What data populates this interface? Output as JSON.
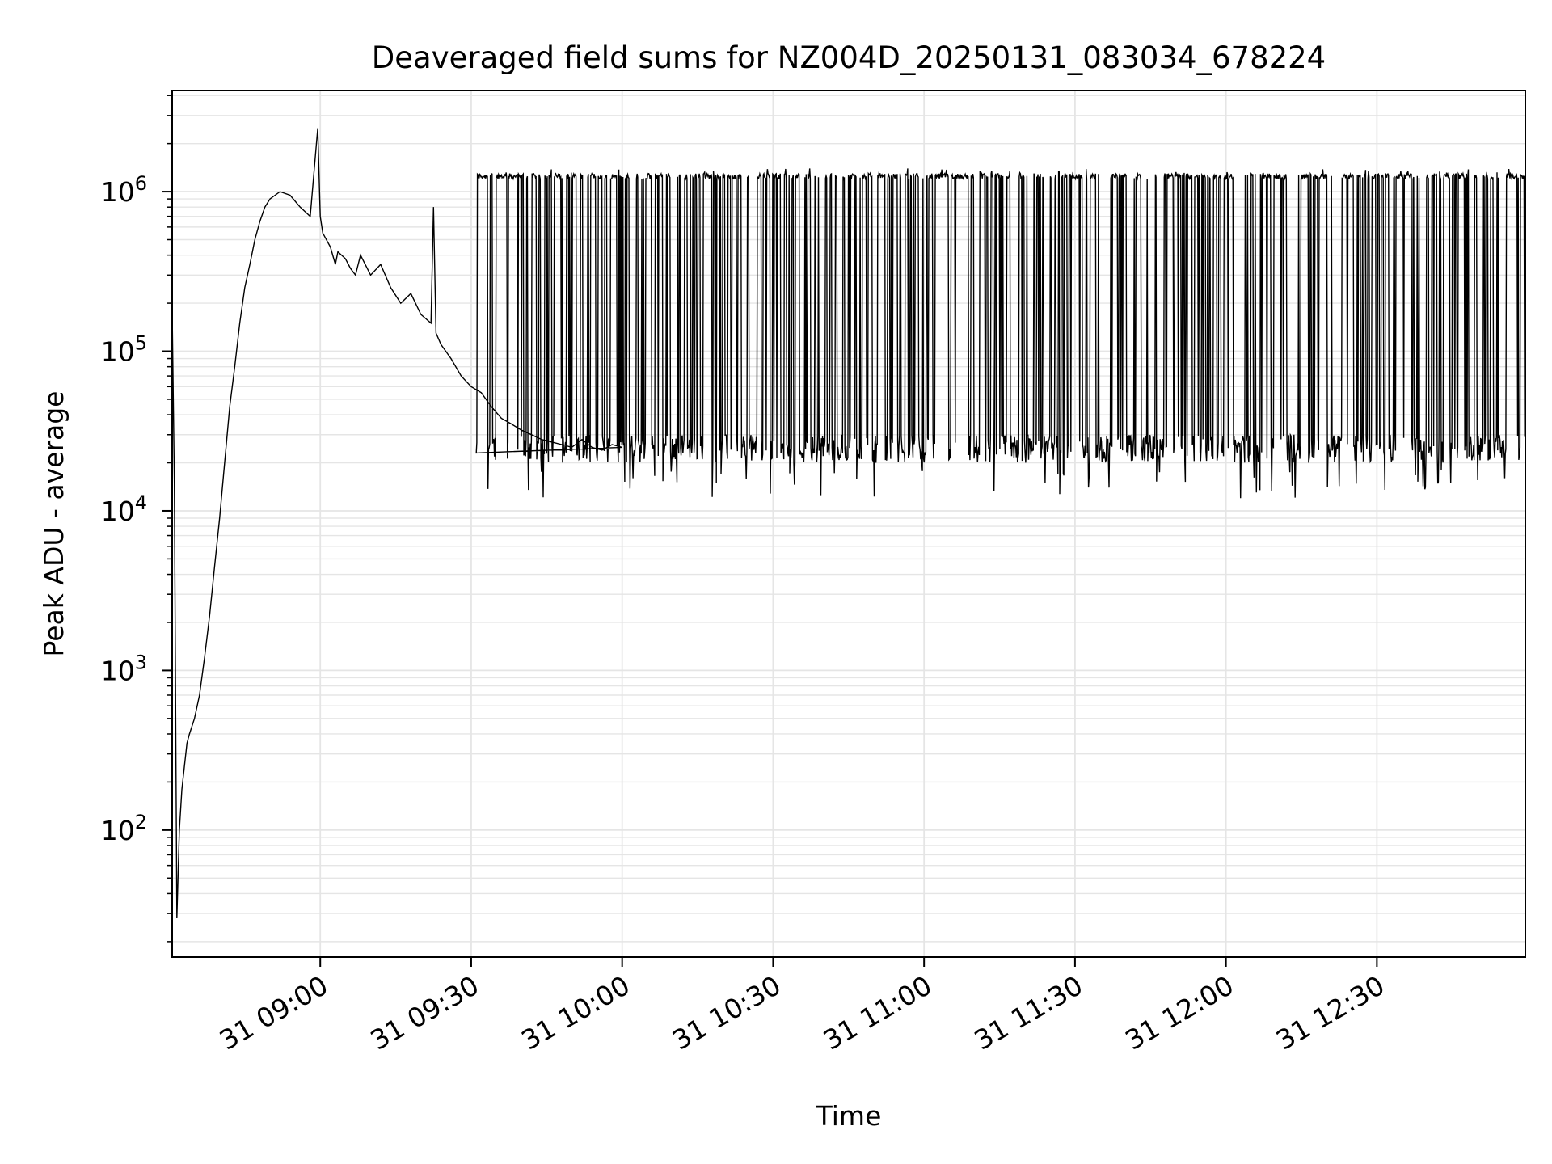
{
  "chart_data": {
    "type": "line",
    "title": "Deaveraged field sums for NZ004D_20250131_083034_678224",
    "xlabel": "Time",
    "ylabel": "Peak ADU - average",
    "xlim": [
      "2025-01-31 08:30:34",
      "2025-01-31 12:59:30"
    ],
    "ylim": [
      16,
      4300000
    ],
    "yscale": "log",
    "grid": true,
    "legend": "none",
    "line_color": "#000000",
    "grid_color": "#e5e5e5",
    "x_ticks": [
      {
        "value": "2025-01-31 09:00",
        "label": "31 09:00"
      },
      {
        "value": "2025-01-31 09:30",
        "label": "31 09:30"
      },
      {
        "value": "2025-01-31 10:00",
        "label": "31 10:00"
      },
      {
        "value": "2025-01-31 10:30",
        "label": "31 10:30"
      },
      {
        "value": "2025-01-31 11:00",
        "label": "31 11:00"
      },
      {
        "value": "2025-01-31 11:30",
        "label": "31 11:30"
      },
      {
        "value": "2025-01-31 12:00",
        "label": "31 12:00"
      },
      {
        "value": "2025-01-31 12:30",
        "label": "31 12:30"
      }
    ],
    "y_ticks": [
      {
        "value": 100,
        "base": "10",
        "exp": "2"
      },
      {
        "value": 1000,
        "base": "10",
        "exp": "3"
      },
      {
        "value": 10000,
        "base": "10",
        "exp": "4"
      },
      {
        "value": 100000,
        "base": "10",
        "exp": "5"
      },
      {
        "value": 1000000,
        "base": "10",
        "exp": "6"
      }
    ],
    "series": [
      {
        "x": [
          "2025-01-31 08:30:34",
          "2025-01-31 08:31:00",
          "2025-01-31 08:31:30",
          "2025-01-31 08:32:00",
          "2025-01-31 08:32:30",
          "2025-01-31 08:33:00",
          "2025-01-31 08:33:30",
          "2025-01-31 08:34:00",
          "2025-01-31 08:35:00",
          "2025-01-31 08:36:00",
          "2025-01-31 08:37:00",
          "2025-01-31 08:38:00",
          "2025-01-31 08:39:00",
          "2025-01-31 08:40:00",
          "2025-01-31 08:41:00",
          "2025-01-31 08:42:00",
          "2025-01-31 08:43:00",
          "2025-01-31 08:44:00",
          "2025-01-31 08:45:00",
          "2025-01-31 08:46:00",
          "2025-01-31 08:47:00",
          "2025-01-31 08:48:00",
          "2025-01-31 08:49:00",
          "2025-01-31 08:50:00",
          "2025-01-31 08:52:00",
          "2025-01-31 08:54:00",
          "2025-01-31 08:56:00",
          "2025-01-31 08:58:00",
          "2025-01-31 08:59:30",
          "2025-01-31 09:00:00",
          "2025-01-31 09:00:30",
          "2025-01-31 09:02:00",
          "2025-01-31 09:03:00",
          "2025-01-31 09:03:30",
          "2025-01-31 09:05:00",
          "2025-01-31 09:06:00",
          "2025-01-31 09:07:00",
          "2025-01-31 09:08:00",
          "2025-01-31 09:10:00",
          "2025-01-31 09:12:00",
          "2025-01-31 09:14:00",
          "2025-01-31 09:16:00",
          "2025-01-31 09:18:00",
          "2025-01-31 09:20:00",
          "2025-01-31 09:22:00",
          "2025-01-31 09:22:30",
          "2025-01-31 09:23:00",
          "2025-01-31 09:24:00",
          "2025-01-31 09:26:00",
          "2025-01-31 09:28:00",
          "2025-01-31 09:30:00",
          "2025-01-31 09:32:00",
          "2025-01-31 09:34:00",
          "2025-01-31 09:36:00",
          "2025-01-31 09:38:00",
          "2025-01-31 09:40:00",
          "2025-01-31 09:42:00",
          "2025-01-31 09:44:00",
          "2025-01-31 09:46:00",
          "2025-01-31 09:48:00",
          "2025-01-31 09:50:00",
          "2025-01-31 09:52:00",
          "2025-01-31 09:54:00",
          "2025-01-31 09:56:00",
          "2025-01-31 09:58:00",
          "2025-01-31 10:00:00"
        ],
        "values": [
          180000,
          15000,
          28,
          100,
          180,
          250,
          350,
          400,
          500,
          700,
          1200,
          2200,
          4500,
          9000,
          20000,
          45000,
          80000,
          150000,
          250000,
          350000,
          500000,
          650000,
          800000,
          900000,
          1000000,
          950000,
          800000,
          700000,
          2500000,
          700000,
          550000,
          450000,
          350000,
          420000,
          380000,
          330000,
          300000,
          400000,
          300000,
          350000,
          250000,
          200000,
          230000,
          170000,
          150000,
          800000,
          130000,
          110000,
          90000,
          70000,
          60000,
          55000,
          45000,
          38000,
          35000,
          32000,
          30000,
          28000,
          27000,
          26000,
          25000,
          28000,
          25000,
          24000,
          26000,
          25000
        ]
      }
    ],
    "oscillation": {
      "x_range": [
        "2025-01-31 09:31:00",
        "2025-01-31 12:59:30"
      ],
      "high": [
        1200000,
        1300000
      ],
      "low": [
        20000,
        30000
      ],
      "min": 12000,
      "max": 1400000
    }
  }
}
